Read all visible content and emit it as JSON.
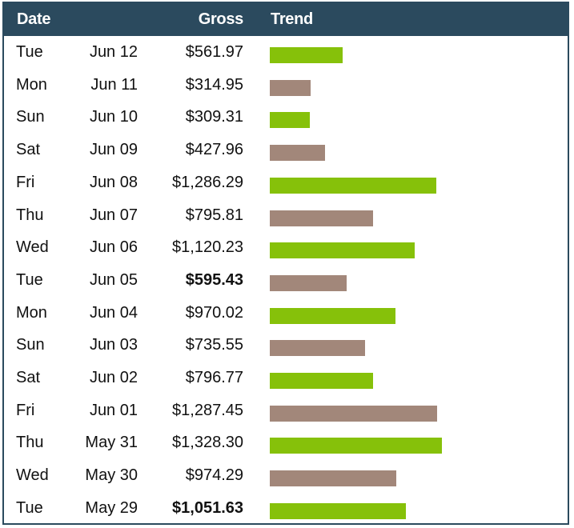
{
  "header": {
    "date": "Date",
    "gross": "Gross",
    "trend": "Trend"
  },
  "colors": {
    "header_bg": "#2b4a5e",
    "up": "#86c10a",
    "down": "#a2877a"
  },
  "chart_data": {
    "type": "table",
    "columns": [
      "Date",
      "Gross",
      "Trend"
    ],
    "rows": [
      {
        "day": "Tue",
        "date": "Jun 12",
        "gross": "$561.97",
        "value": 561.97,
        "trend": "up",
        "bold": false
      },
      {
        "day": "Mon",
        "date": "Jun 11",
        "gross": "$314.95",
        "value": 314.95,
        "trend": "down",
        "bold": false
      },
      {
        "day": "Sun",
        "date": "Jun 10",
        "gross": "$309.31",
        "value": 309.31,
        "trend": "up",
        "bold": false
      },
      {
        "day": "Sat",
        "date": "Jun 09",
        "gross": "$427.96",
        "value": 427.96,
        "trend": "down",
        "bold": false
      },
      {
        "day": "Fri",
        "date": "Jun 08",
        "gross": "$1,286.29",
        "value": 1286.29,
        "trend": "up",
        "bold": false
      },
      {
        "day": "Thu",
        "date": "Jun 07",
        "gross": "$795.81",
        "value": 795.81,
        "trend": "down",
        "bold": false
      },
      {
        "day": "Wed",
        "date": "Jun 06",
        "gross": "$1,120.23",
        "value": 1120.23,
        "trend": "up",
        "bold": false
      },
      {
        "day": "Tue",
        "date": "Jun 05",
        "gross": "$595.43",
        "value": 595.43,
        "trend": "down",
        "bold": true
      },
      {
        "day": "Mon",
        "date": "Jun 04",
        "gross": "$970.02",
        "value": 970.02,
        "trend": "up",
        "bold": false
      },
      {
        "day": "Sun",
        "date": "Jun 03",
        "gross": "$735.55",
        "value": 735.55,
        "trend": "down",
        "bold": false
      },
      {
        "day": "Sat",
        "date": "Jun 02",
        "gross": "$796.77",
        "value": 796.77,
        "trend": "up",
        "bold": false
      },
      {
        "day": "Fri",
        "date": "Jun 01",
        "gross": "$1,287.45",
        "value": 1287.45,
        "trend": "down",
        "bold": false
      },
      {
        "day": "Thu",
        "date": "May 31",
        "gross": "$1,328.30",
        "value": 1328.3,
        "trend": "up",
        "bold": false
      },
      {
        "day": "Wed",
        "date": "May 30",
        "gross": "$974.29",
        "value": 974.29,
        "trend": "down",
        "bold": false
      },
      {
        "day": "Tue",
        "date": "May 29",
        "gross": "$1,051.63",
        "value": 1051.63,
        "trend": "up",
        "bold": true
      }
    ]
  }
}
